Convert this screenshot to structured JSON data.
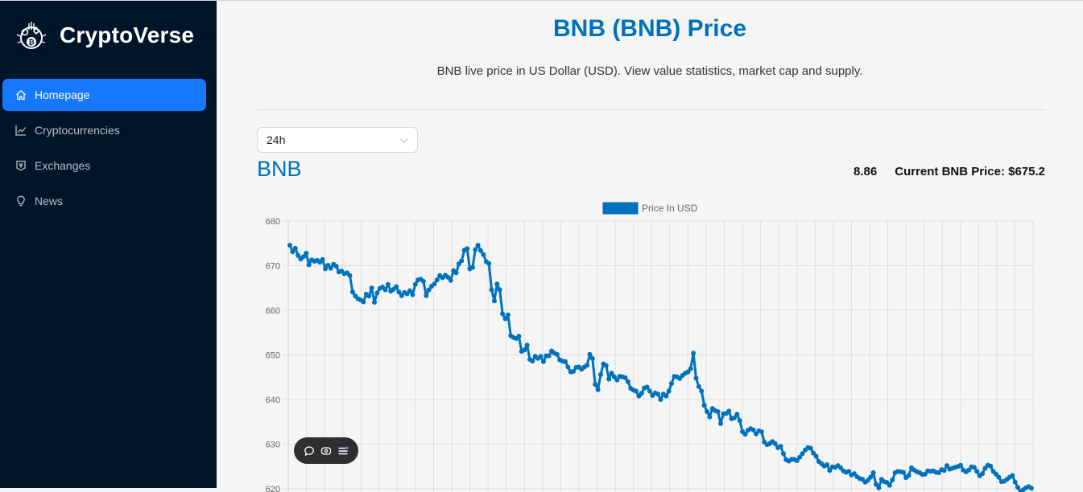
{
  "app": {
    "name": "CryptoVerse"
  },
  "sidebar": {
    "items": [
      {
        "label": "Homepage",
        "icon": "home-icon",
        "active": true
      },
      {
        "label": "Cryptocurrencies",
        "icon": "line-chart-icon",
        "active": false
      },
      {
        "label": "Exchanges",
        "icon": "money-collect-icon",
        "active": false
      },
      {
        "label": "News",
        "icon": "bulb-icon",
        "active": false
      }
    ]
  },
  "header": {
    "title": "BNB (BNB) Price",
    "subtitle": "BNB live price in US Dollar (USD). View value statistics, market cap and supply."
  },
  "period_select": {
    "value": "24h"
  },
  "coin": {
    "name": "BNB",
    "change": "8.86",
    "current_price_label": "Current BNB Price: $675.2"
  },
  "colors": {
    "accent": "#0071bd",
    "sidebar_bg": "#001529",
    "menu_active": "#1677ff"
  },
  "chart_data": {
    "type": "line",
    "legend": "Price In USD",
    "legend_position": "top-center",
    "grid": true,
    "yticks": [
      620,
      630,
      640,
      650,
      660,
      670,
      680
    ],
    "ylim": [
      620,
      680
    ],
    "series": [
      {
        "name": "Price In USD",
        "color": "#0071bd",
        "values": [
          674.6,
          673.1,
          673.9,
          672.3,
          671.5,
          672.0,
          672.8,
          670.2,
          671.3,
          671.0,
          671.2,
          670.8,
          671.4,
          669.3,
          670.1,
          669.4,
          670.3,
          669.9,
          668.6,
          668.8,
          668.2,
          668.4,
          667.8,
          664.1,
          663.2,
          662.6,
          662.3,
          661.9,
          663.6,
          663.2,
          665.0,
          661.8,
          663.9,
          664.9,
          665.2,
          664.6,
          665.8,
          664.3,
          664.7,
          665.3,
          664.1,
          663.3,
          664.0,
          663.7,
          664.4,
          663.5,
          665.8,
          666.8,
          667.0,
          666.5,
          663.3,
          664.6,
          665.4,
          665.9,
          666.8,
          667.8,
          667.3,
          667.9,
          667.4,
          666.7,
          668.9,
          668.4,
          670.4,
          671.1,
          673.5,
          673.8,
          669.3,
          669.6,
          673.6,
          674.6,
          673.4,
          672.5,
          670.9,
          670.5,
          664.6,
          662.1,
          665.9,
          664.6,
          659.2,
          658.1,
          659.0,
          654.3,
          653.9,
          653.7,
          654.2,
          650.8,
          651.1,
          652.2,
          649.0,
          648.6,
          649.7,
          649.2,
          649.7,
          648.5,
          649.8,
          649.8,
          650.9,
          650.4,
          650.1,
          648.9,
          648.6,
          648.5,
          647.3,
          646.2,
          646.3,
          647.2,
          647.3,
          646.8,
          647.3,
          647.7,
          650.1,
          649.2,
          643.4,
          642.2,
          645.6,
          648.0,
          647.6,
          644.6,
          645.9,
          645.1,
          644.4,
          645.2,
          645.1,
          644.9,
          644.0,
          642.5,
          642.1,
          641.9,
          640.8,
          641.4,
          642.6,
          642.8,
          641.9,
          640.9,
          641.5,
          641.2,
          640.0,
          641.2,
          640.8,
          641.9,
          643.6,
          645.2,
          645.1,
          644.7,
          645.4,
          645.9,
          646.2,
          646.9,
          650.4,
          644.8,
          642.9,
          641.9,
          638.7,
          637.3,
          636.1,
          638.0,
          637.5,
          637.3,
          634.6,
          636.8,
          636.9,
          637.4,
          635.7,
          635.9,
          636.7,
          635.3,
          632.8,
          632.2,
          633.1,
          633.5,
          633.2,
          632.3,
          633.0,
          632.8,
          630.5,
          629.9,
          630.1,
          630.6,
          630.1,
          629.2,
          629.5,
          627.9,
          626.5,
          626.2,
          626.6,
          626.6,
          626.3,
          627.1,
          627.9,
          628.7,
          629.2,
          629.1,
          628.0,
          627.3,
          626.1,
          625.6,
          625.1,
          625.4,
          624.1,
          624.9,
          624.8,
          625.2,
          624.7,
          624.0,
          623.7,
          623.9,
          623.1,
          623.4,
          622.7,
          622.3,
          622.1,
          621.5,
          621.9,
          622.6,
          623.6,
          621.0,
          620.2,
          622.1,
          621.6,
          621.4,
          620.8,
          622.0,
          623.6,
          623.9,
          623.8,
          623.7,
          622.5,
          623.0,
          624.7,
          624.2,
          623.8,
          623.6,
          623.2,
          623.3,
          624.0,
          623.9,
          624.0,
          623.7,
          623.6,
          624.3,
          624.1,
          625.2,
          624.4,
          624.6,
          624.8,
          625.0,
          625.3,
          624.2,
          623.8,
          624.2,
          624.9,
          624.8,
          623.9,
          622.9,
          623.4,
          624.6,
          625.3,
          625.1,
          623.9,
          623.3,
          622.6,
          621.6,
          621.7,
          622.1,
          622.6,
          623.0,
          621.5,
          620.3,
          619.4,
          619.8,
          620.2,
          620.5,
          620.1
        ]
      }
    ]
  }
}
